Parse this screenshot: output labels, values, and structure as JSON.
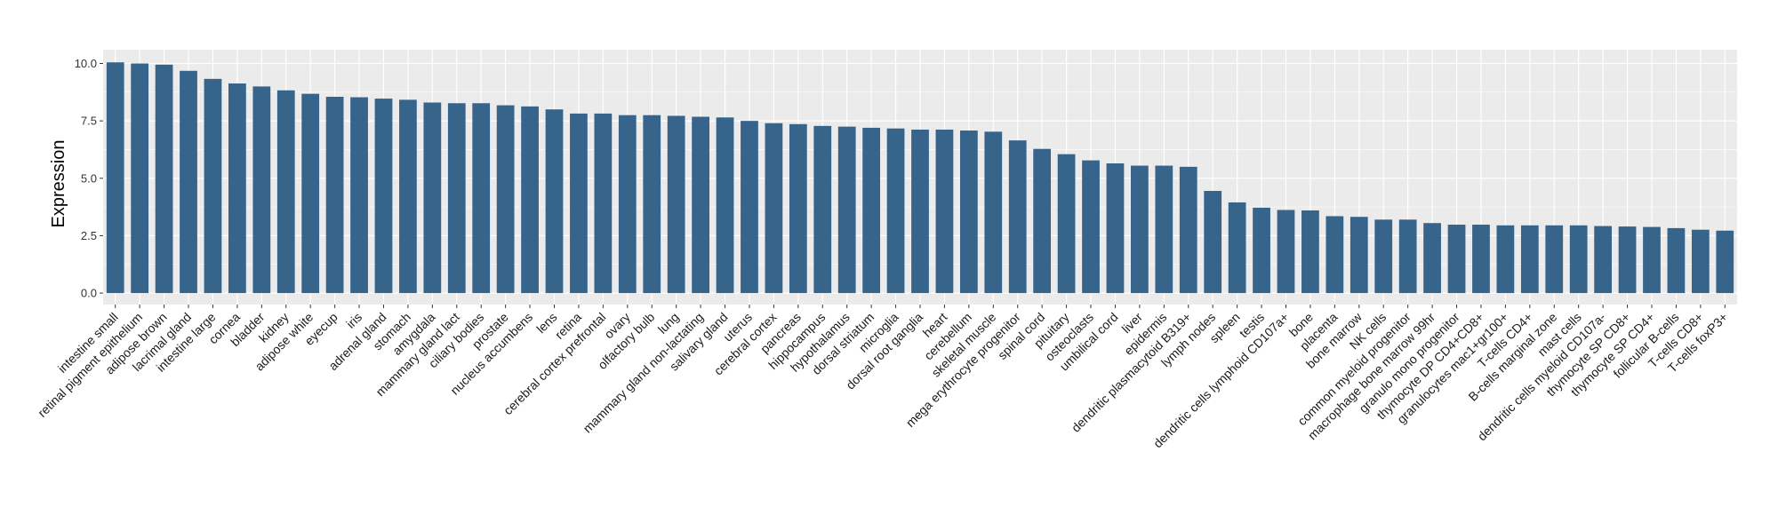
{
  "chart_data": {
    "type": "bar",
    "ylabel": "Expression",
    "xlabel": "",
    "ylim": [
      -0.5,
      10.6
    ],
    "yticks": [
      "0.0",
      "2.5",
      "5.0",
      "7.5",
      "10.0"
    ],
    "grid": true,
    "bar_color": "#36648B",
    "panel_color": "#EBEBEB",
    "grid_color": "#FFFFFF",
    "categories": [
      "intestine small",
      "retinal pigment epithelium",
      "adipose brown",
      "lacrimal gland",
      "intestine large",
      "cornea",
      "bladder",
      "kidney",
      "adipose white",
      "eyecup",
      "iris",
      "adrenal gland",
      "stomach",
      "amygdala",
      "mammary gland  lact",
      "ciliary bodies",
      "prostate",
      "nucleus accumbens",
      "lens",
      "retina",
      "cerebral cortex prefrontal",
      "ovary",
      "olfactory bulb",
      "lung",
      "mammary gland non-lactating",
      "salivary gland",
      "uterus",
      "cerebral cortex",
      "pancreas",
      "hippocampus",
      "hypothalamus",
      "dorsal striatum",
      "microglia",
      "dorsal root ganglia",
      "heart",
      "cerebellum",
      "skeletal muscle",
      "mega erythrocyte progenitor",
      "spinal cord",
      "pituitary",
      "osteoclasts",
      "umbilical cord",
      "liver",
      "epidermis",
      "dendritic plasmacytoid B319+",
      "lymph nodes",
      "spleen",
      "testis",
      "dendritic cells lymphoid CD107a+",
      "bone",
      "placenta",
      "bone marrow",
      "NK cells",
      "common myeloid progenitor",
      "macrophage bone marrow 99hr",
      "granulo mono progenitor",
      "thymocyte DP CD4+CD8+",
      "granulocytes mac1+gr100+",
      "T-cells CD4+",
      "B-cells marginal zone",
      "mast cells",
      "dendritic cells myeloid CD107a-",
      "thymocyte SP CD8+",
      "thymocyte SP CD4+",
      "follicular B-cells",
      "T-cells CD8+",
      "T-cells foxP3+"
    ],
    "values": [
      10.05,
      10.0,
      9.95,
      9.68,
      9.33,
      9.13,
      9.0,
      8.83,
      8.68,
      8.55,
      8.53,
      8.47,
      8.42,
      8.3,
      8.27,
      8.27,
      8.18,
      8.13,
      8.0,
      7.82,
      7.82,
      7.75,
      7.75,
      7.72,
      7.68,
      7.65,
      7.5,
      7.4,
      7.36,
      7.28,
      7.25,
      7.2,
      7.17,
      7.12,
      7.12,
      7.08,
      7.03,
      6.65,
      6.28,
      6.05,
      5.78,
      5.65,
      5.55,
      5.55,
      5.5,
      4.45,
      3.95,
      3.72,
      3.62,
      3.6,
      3.35,
      3.32,
      3.2,
      3.2,
      3.05,
      2.98,
      2.98,
      2.95,
      2.95,
      2.95,
      2.95,
      2.92,
      2.9,
      2.88,
      2.83,
      2.76,
      2.72
    ]
  }
}
